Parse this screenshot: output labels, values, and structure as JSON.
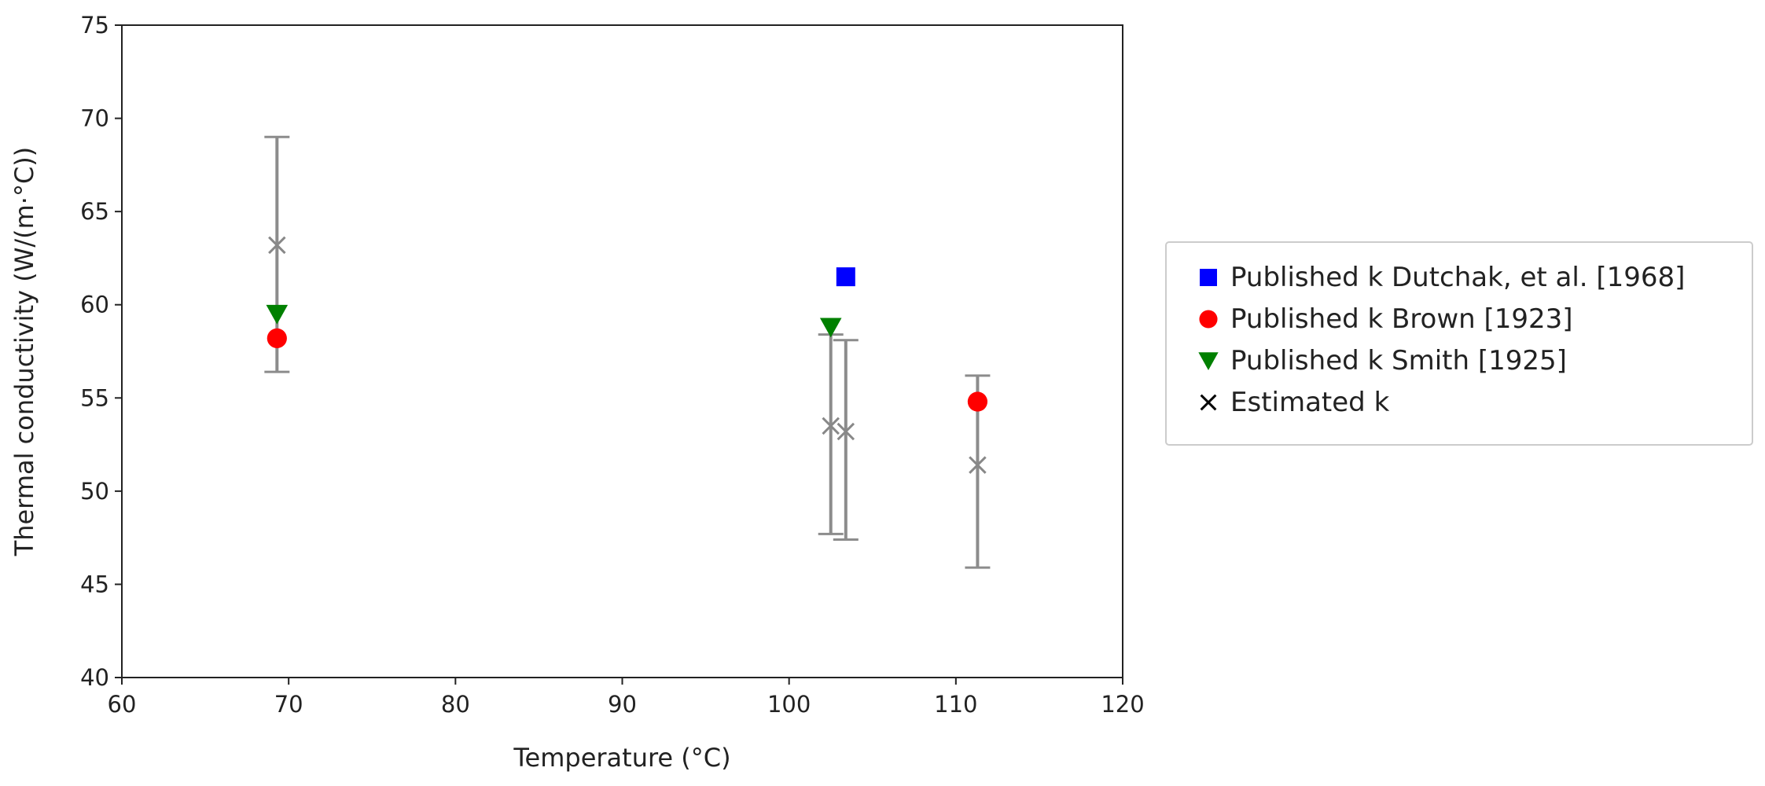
{
  "chart_data": {
    "type": "scatter",
    "title": "",
    "xlabel": "Temperature (°C)",
    "ylabel": "Thermal conductivity (W/(m·°C))",
    "xlim": [
      60,
      120
    ],
    "ylim": [
      40,
      75
    ],
    "xticks": [
      60,
      70,
      80,
      90,
      100,
      110,
      120
    ],
    "yticks": [
      40,
      45,
      50,
      55,
      60,
      65,
      70,
      75
    ],
    "grid": false,
    "legend_position": "outside-right",
    "series": [
      {
        "name": "Published k Dutchak, et al. [1968]",
        "marker": "square",
        "color": "#0000ff",
        "points": [
          {
            "x": 103.4,
            "y": 61.5
          }
        ]
      },
      {
        "name": "Published k Brown [1923]",
        "marker": "circle",
        "color": "#ff0000",
        "points": [
          {
            "x": 69.3,
            "y": 58.2
          },
          {
            "x": 111.3,
            "y": 54.8
          }
        ]
      },
      {
        "name": "Published k Smith [1925]",
        "marker": "triangle-down",
        "color": "#008000",
        "points": [
          {
            "x": 69.3,
            "y": 59.5
          },
          {
            "x": 102.5,
            "y": 58.8
          }
        ]
      },
      {
        "name": "Estimated k",
        "marker": "x",
        "color": "#888888",
        "legend_color": "#000000",
        "points": [
          {
            "x": 69.3,
            "y": 63.2,
            "ylow": 56.4,
            "yhigh": 69.0
          },
          {
            "x": 102.5,
            "y": 53.5,
            "ylow": 47.7,
            "yhigh": 58.4
          },
          {
            "x": 103.4,
            "y": 53.2,
            "ylow": 47.4,
            "yhigh": 58.1
          },
          {
            "x": 111.3,
            "y": 51.4,
            "ylow": 45.9,
            "yhigh": 56.2
          }
        ]
      }
    ]
  }
}
